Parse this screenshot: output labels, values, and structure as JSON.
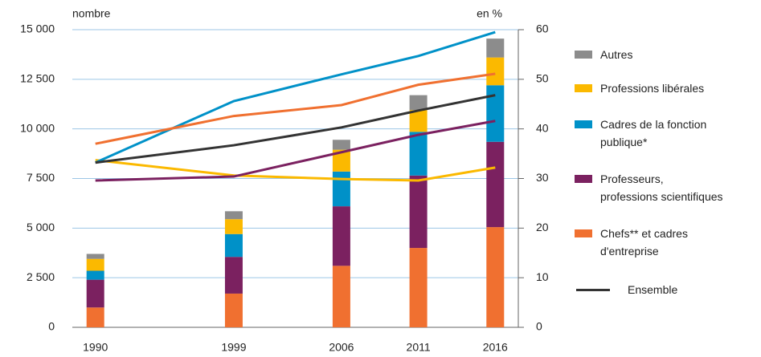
{
  "chart_data": {
    "type": "bar",
    "y_label": "nombre",
    "y2_label": "en %",
    "x": [
      1990,
      1999,
      2006,
      2011,
      2016
    ],
    "xlim": [
      1988.5,
      2017.5
    ],
    "xticks": [
      1990,
      1999,
      2006,
      2011,
      2016
    ],
    "ylim": [
      0,
      15000
    ],
    "yticks": [
      {
        "value": 0,
        "label": "0"
      },
      {
        "value": 2500,
        "label": "2 500"
      },
      {
        "value": 5000,
        "label": "5 000"
      },
      {
        "value": 7500,
        "label": "7 500"
      },
      {
        "value": 10000,
        "label": "10 000"
      },
      {
        "value": 12500,
        "label": "12 500"
      },
      {
        "value": 15000,
        "label": "15 000"
      }
    ],
    "y2lim": [
      0,
      60
    ],
    "y2ticks": [
      0,
      10,
      20,
      30,
      40,
      50,
      60
    ],
    "grid": true,
    "series": [
      {
        "name": "Autres",
        "color": "#8c8c8c",
        "values": [
          250,
          400,
          500,
          750,
          950
        ]
      },
      {
        "name": "Professions libérales",
        "color": "#fbb900",
        "values": [
          600,
          750,
          1100,
          1100,
          1400
        ],
        "y2_values": [
          33.7,
          30.6,
          29.9,
          29.6,
          32.2
        ]
      },
      {
        "name": "Cadres de la fonction\npublique*",
        "color": "#0091c8",
        "values": [
          450,
          1150,
          1750,
          2200,
          2850
        ],
        "y2_values": [
          33.2,
          45.6,
          51,
          54.7,
          59.5
        ]
      },
      {
        "name": "Professeurs,\nprofessions scientifiques",
        "color": "#7b2160",
        "values": [
          1400,
          1850,
          3000,
          3650,
          4300
        ],
        "y2_values": [
          29.6,
          30.4,
          35.3,
          38.8,
          41.6
        ]
      },
      {
        "name": "Chefs** et cadres\nd'entreprise",
        "color": "#f07030",
        "values": [
          1000,
          1700,
          3100,
          4000,
          5050
        ],
        "y2_values": [
          37,
          42.6,
          44.8,
          48.9,
          51.1
        ]
      },
      {
        "name": "Ensemble",
        "color": "#333333",
        "y2_values": [
          33.2,
          36.7,
          40.3,
          43.7,
          46.8
        ]
      }
    ]
  }
}
